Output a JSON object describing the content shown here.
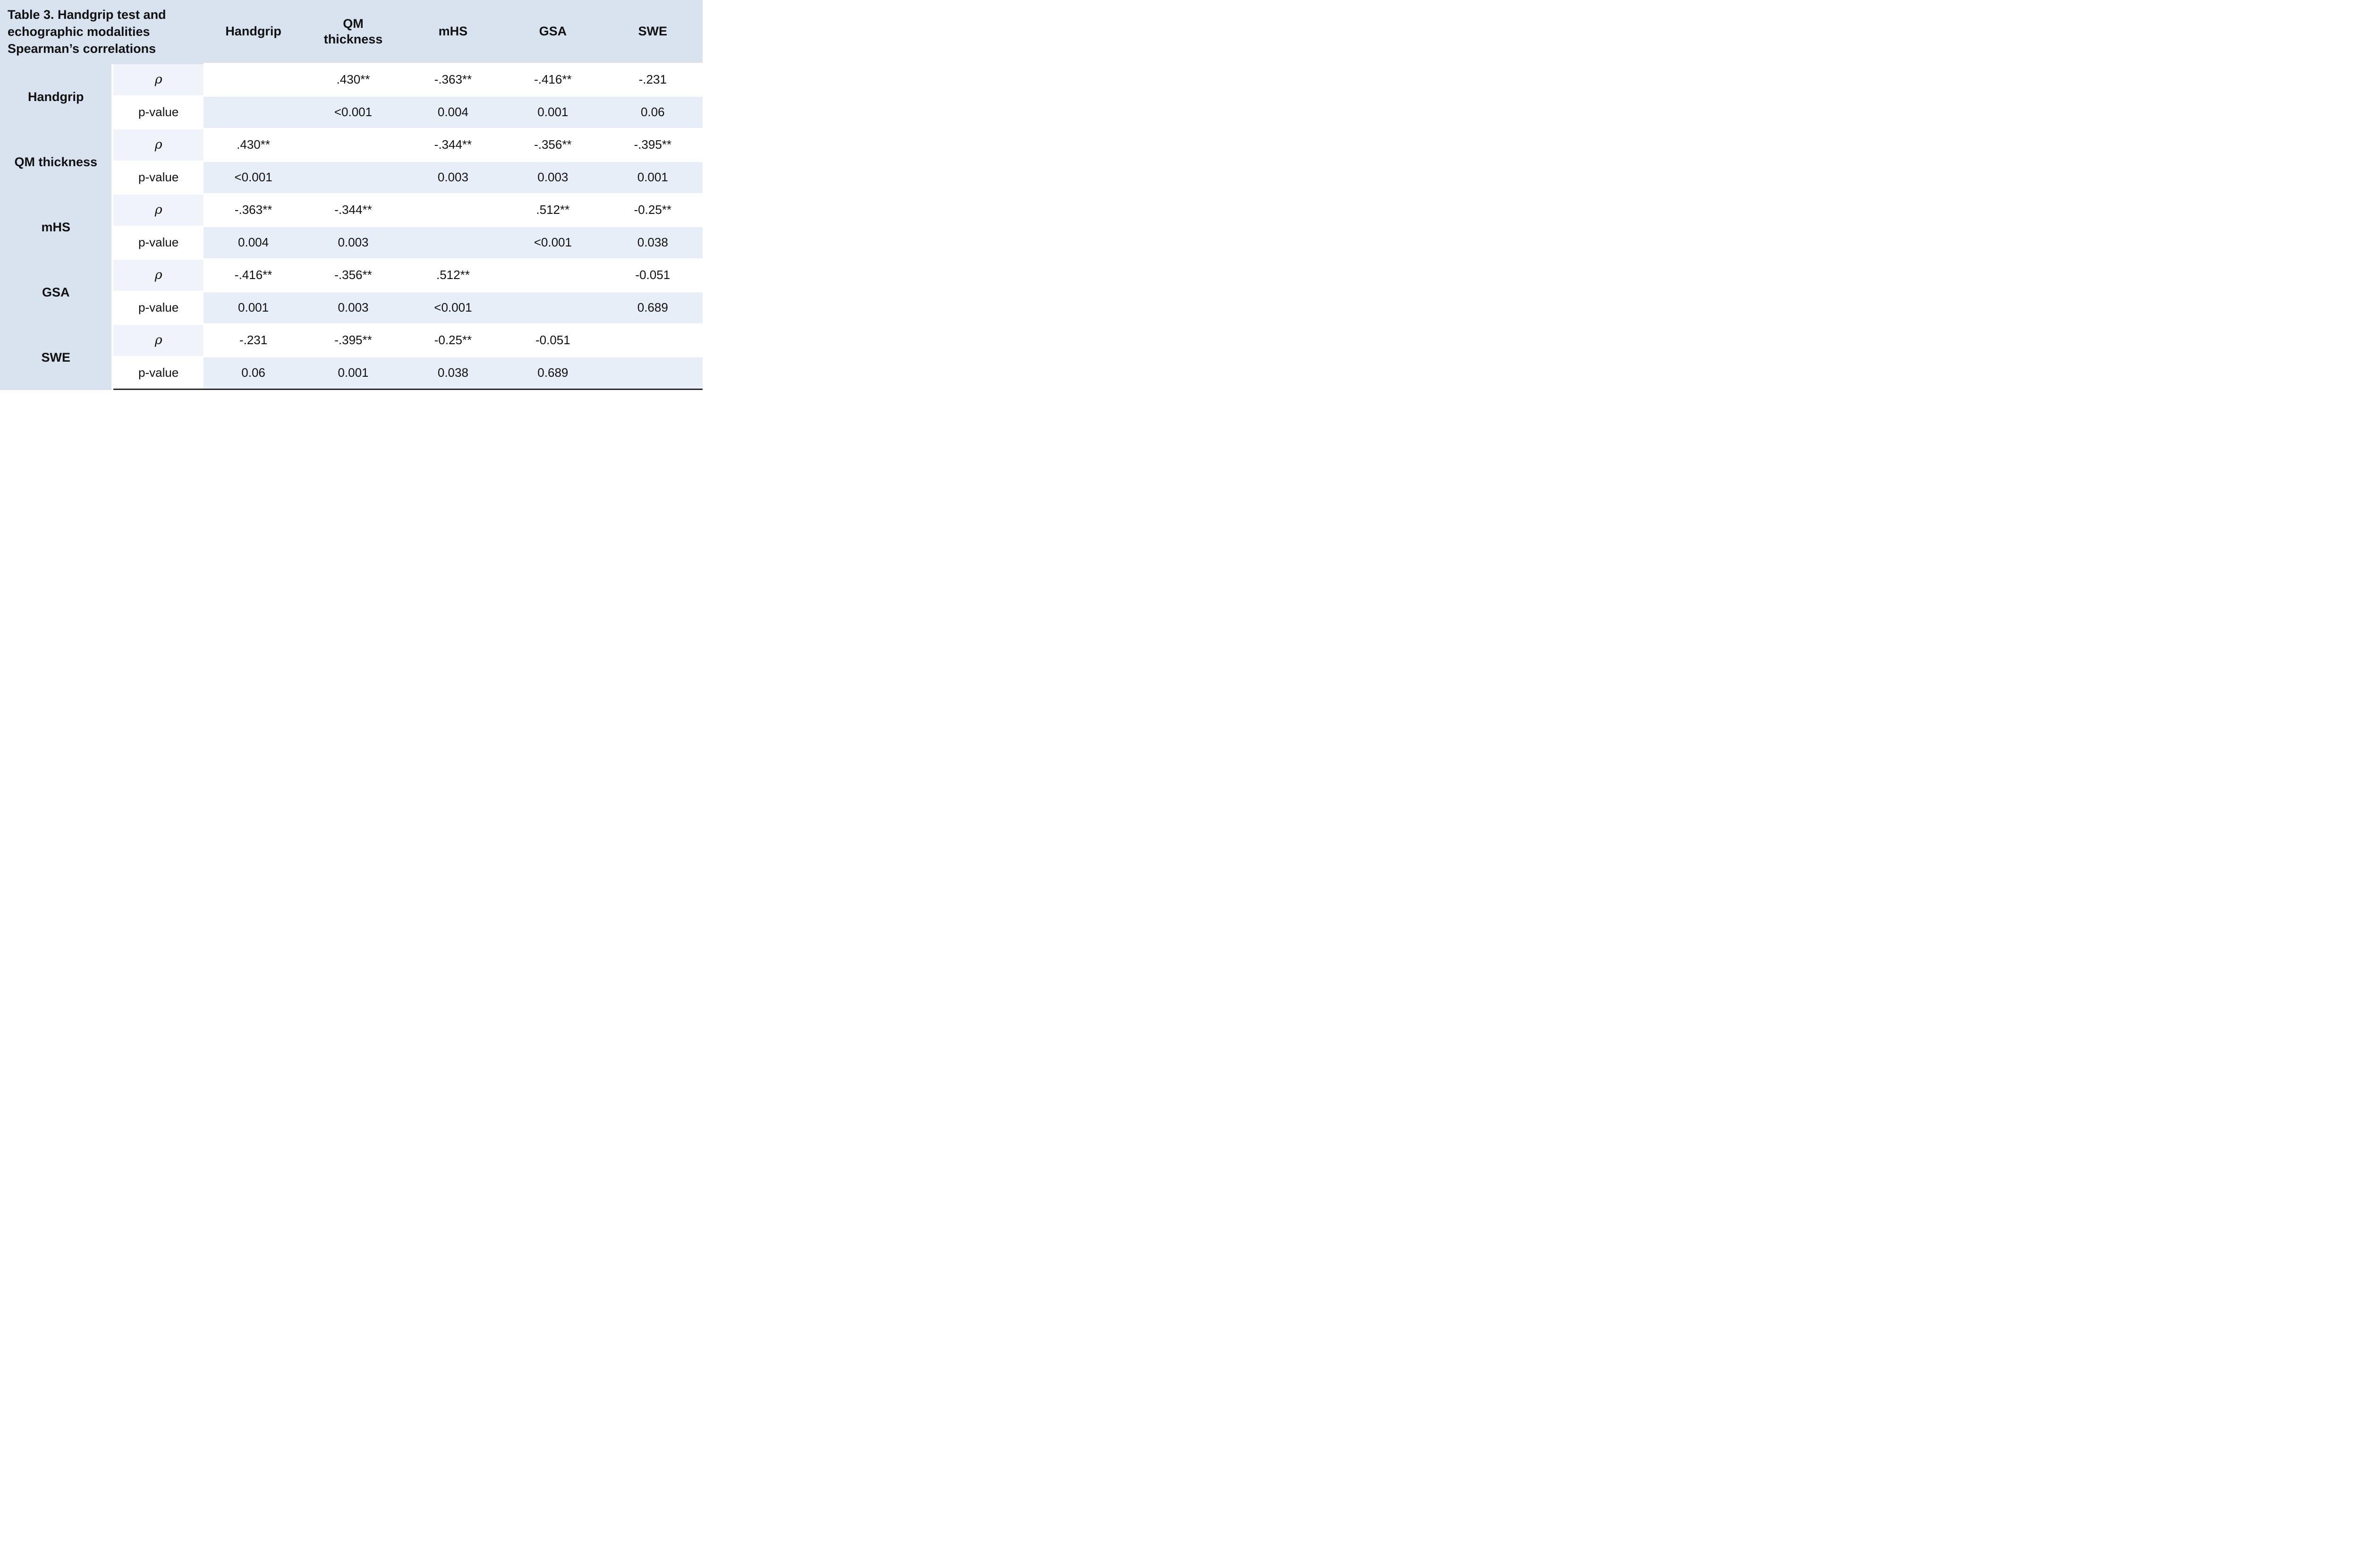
{
  "table": {
    "title": "Table 3. Handgrip test and echographic modalities Spearman’s correlations",
    "column_headers": [
      "Handgrip",
      "QM thickness",
      "mHS",
      "GSA",
      "SWE"
    ],
    "labels": {
      "rho": "ρ",
      "p": "p-value"
    },
    "groups": [
      {
        "label": "Handgrip",
        "rho": [
          "",
          ".430**",
          "-.363**",
          "-.416**",
          "-.231"
        ],
        "p": [
          "",
          "<0.001",
          "0.004",
          "0.001",
          "0.06"
        ]
      },
      {
        "label": "QM thickness",
        "rho": [
          ".430**",
          "",
          "-.344**",
          "-.356**",
          "-.395**"
        ],
        "p": [
          "<0.001",
          "",
          "0.003",
          "0.003",
          "0.001"
        ]
      },
      {
        "label": "mHS",
        "rho": [
          "-.363**",
          "-.344**",
          "",
          ".512**",
          "-0.25**"
        ],
        "p": [
          "0.004",
          "0.003",
          "",
          "<0.001",
          "0.038"
        ]
      },
      {
        "label": "GSA",
        "rho": [
          "-.416**",
          "-.356**",
          ".512**",
          "",
          "-0.051"
        ],
        "p": [
          "0.001",
          "0.003",
          "<0.001",
          "",
          "0.689"
        ]
      },
      {
        "label": "SWE",
        "rho": [
          "-.231",
          "-.395**",
          "-0.25**",
          "-0.051",
          ""
        ],
        "p": [
          "0.06",
          "0.001",
          "0.038",
          "0.689",
          ""
        ]
      }
    ]
  },
  "colors": {
    "header_band": "#d9e3f0",
    "rho_label_cell": "#f0f4fa",
    "rho_data_row": "#ffffff",
    "p_data_row": "#e8eef7",
    "bottom_rule": "#2b2b2b",
    "text": "#111111"
  }
}
